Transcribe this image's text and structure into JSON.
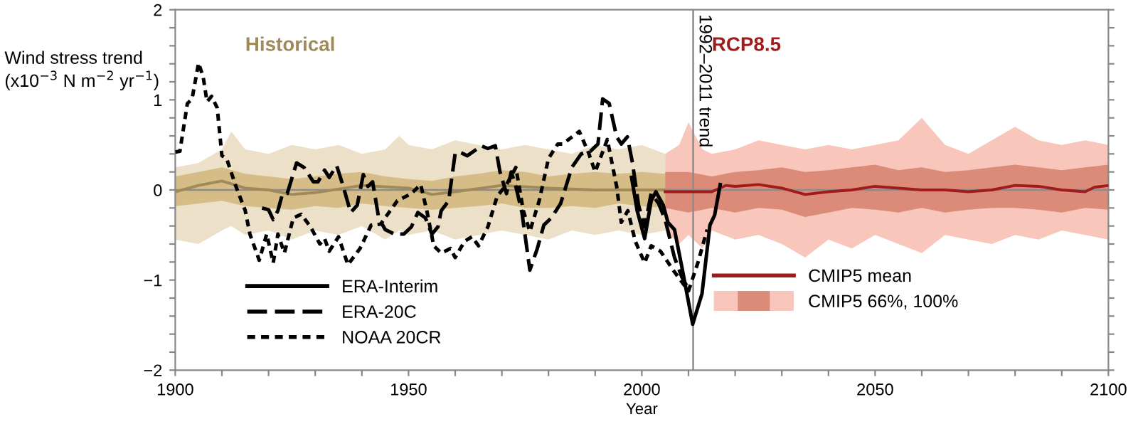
{
  "chart_data": {
    "type": "line",
    "ylabel": "Wind stress trend\n(x10$^{−3}$ N m$^{−2}$ yr$^{−1}$)",
    "xlabel": "Year",
    "xlim": [
      1900,
      2100
    ],
    "xticks": [
      1900,
      {
        "value": 1910,
        "label": null
      },
      {
        "value": 1920,
        "label": null
      },
      {
        "value": 1930,
        "label": null
      },
      {
        "value": 1940,
        "label": null
      },
      1950,
      {
        "value": 1960,
        "label": null
      },
      {
        "value": 1970,
        "label": null
      },
      {
        "value": 1980,
        "label": null
      },
      {
        "value": 1990,
        "label": null
      },
      2000,
      {
        "value": 2010,
        "label": null
      },
      {
        "value": 2020,
        "label": null
      },
      {
        "value": 2030,
        "label": null
      },
      {
        "value": 2040,
        "label": null
      },
      2050,
      {
        "value": 2060,
        "label": null
      },
      {
        "value": 2070,
        "label": null
      },
      {
        "value": 2080,
        "label": null
      },
      {
        "value": 2090,
        "label": null
      },
      2100
    ],
    "ylim": [
      -2,
      2
    ],
    "yticks": [
      -2,
      {
        "value": -1.8,
        "label": null
      },
      {
        "value": -1.6,
        "label": null
      },
      {
        "value": -1.4,
        "label": null
      },
      {
        "value": -1.2,
        "label": null
      },
      -1,
      {
        "value": -0.8,
        "label": null
      },
      {
        "value": -0.6,
        "label": null
      },
      {
        "value": -0.4,
        "label": null
      },
      {
        "value": -0.2,
        "label": null
      },
      0,
      {
        "value": 0.2,
        "label": null
      },
      {
        "value": 0.4,
        "label": null
      },
      {
        "value": 0.6,
        "label": null
      },
      {
        "value": 0.8,
        "label": null
      },
      1,
      {
        "value": 1.2,
        "label": null
      },
      {
        "value": 1.4,
        "label": null
      },
      {
        "value": 1.6,
        "label": null
      },
      {
        "value": 1.8,
        "label": null
      },
      2
    ],
    "grid": false,
    "legend": "bottom",
    "annotations": [
      "Historical",
      "RCP8.5"
    ],
    "ref_lines": [
      {
        "axis": "y",
        "value": 0,
        "color": "#8c8c8c"
      },
      {
        "axis": "x",
        "value": 2011,
        "label": "1992–2011 trend",
        "color": "#8c8c8c"
      }
    ],
    "series": [
      {
        "color": "#ece0c9",
        "x": [
          1900,
          1905,
          1910,
          1912,
          1915,
          1920,
          1925,
          1930,
          1935,
          1940,
          1945,
          1948,
          1950,
          1955,
          1960,
          1965,
          1970,
          1975,
          1980,
          1985,
          1990,
          1995,
          2000,
          2005
        ],
        "values": [
          null,
          null,
          null,
          null,
          null,
          null,
          null,
          null,
          null,
          null,
          null,
          null,
          null,
          null,
          null,
          null,
          null,
          null,
          null,
          null,
          null,
          null,
          null,
          null
        ],
        "lower": [
          -0.55,
          -0.6,
          -0.45,
          -0.4,
          -0.5,
          -0.45,
          -0.55,
          -0.45,
          -0.5,
          -0.4,
          -0.55,
          -0.45,
          -0.5,
          -0.45,
          -0.55,
          -0.5,
          -0.45,
          -0.5,
          -0.55,
          -0.45,
          -0.5,
          -0.45,
          -0.5,
          -0.45
        ],
        "upper": [
          0.25,
          0.3,
          0.45,
          0.65,
          0.45,
          0.4,
          0.5,
          0.45,
          0.5,
          0.4,
          0.45,
          0.6,
          0.5,
          0.45,
          0.55,
          0.5,
          0.45,
          0.5,
          0.45,
          0.4,
          0.5,
          0.45,
          0.5,
          0.4
        ]
      },
      {
        "color": "#d6bc86",
        "x": [
          1900,
          1905,
          1910,
          1915,
          1920,
          1925,
          1930,
          1935,
          1940,
          1945,
          1950,
          1955,
          1960,
          1965,
          1970,
          1975,
          1980,
          1985,
          1990,
          1995,
          2000,
          2005
        ],
        "values": [
          null,
          null,
          null,
          null,
          null,
          null,
          null,
          null,
          null,
          null,
          null,
          null,
          null,
          null,
          null,
          null,
          null,
          null,
          null,
          null,
          null,
          null
        ],
        "lower": [
          -0.18,
          -0.15,
          -0.12,
          -0.18,
          -0.2,
          -0.22,
          -0.18,
          -0.2,
          -0.15,
          -0.18,
          -0.2,
          -0.22,
          -0.2,
          -0.18,
          -0.15,
          -0.2,
          -0.2,
          -0.18,
          -0.2,
          -0.15,
          -0.18,
          -0.2
        ],
        "upper": [
          0.15,
          0.2,
          0.25,
          0.18,
          0.15,
          0.12,
          0.15,
          0.18,
          0.2,
          0.15,
          0.12,
          0.1,
          0.15,
          0.18,
          0.22,
          0.2,
          0.15,
          0.18,
          0.2,
          0.18,
          0.2,
          0.18
        ]
      },
      {
        "name": "CMIP5 66%, 100%",
        "color": "#f8c6ba",
        "x": [
          2005,
          2008,
          2010,
          2013,
          2015,
          2020,
          2025,
          2030,
          2035,
          2040,
          2045,
          2050,
          2055,
          2060,
          2065,
          2070,
          2075,
          2080,
          2085,
          2090,
          2095,
          2100
        ],
        "values": [
          null,
          null,
          null,
          null,
          null,
          null,
          null,
          null,
          null,
          null,
          null,
          null,
          null,
          null,
          null,
          null,
          null,
          null,
          null,
          null,
          null,
          null
        ],
        "lower": [
          -0.45,
          -0.6,
          -0.5,
          -0.65,
          -0.45,
          -0.55,
          -0.5,
          -0.6,
          -0.75,
          -0.55,
          -0.65,
          -0.5,
          -0.6,
          -0.7,
          -0.5,
          -0.55,
          -0.6,
          -0.5,
          -0.55,
          -0.45,
          -0.5,
          -0.55
        ],
        "upper": [
          0.4,
          0.5,
          0.75,
          0.45,
          0.4,
          0.45,
          0.55,
          0.5,
          0.45,
          0.5,
          0.45,
          0.5,
          0.55,
          0.8,
          0.5,
          0.4,
          0.55,
          0.7,
          0.55,
          0.5,
          0.55,
          0.5
        ]
      },
      {
        "color": "#dc8b78",
        "x": [
          2005,
          2010,
          2015,
          2020,
          2025,
          2030,
          2035,
          2040,
          2045,
          2050,
          2055,
          2060,
          2065,
          2070,
          2075,
          2080,
          2085,
          2090,
          2095,
          2100
        ],
        "values": [
          null,
          null,
          null,
          null,
          null,
          null,
          null,
          null,
          null,
          null,
          null,
          null,
          null,
          null,
          null,
          null,
          null,
          null,
          null,
          null
        ],
        "lower": [
          -0.2,
          -0.25,
          -0.2,
          -0.25,
          -0.2,
          -0.22,
          -0.3,
          -0.25,
          -0.2,
          -0.22,
          -0.25,
          -0.2,
          -0.25,
          -0.22,
          -0.2,
          -0.2,
          -0.22,
          -0.25,
          -0.2,
          -0.22
        ],
        "upper": [
          0.2,
          0.2,
          0.15,
          0.2,
          0.22,
          0.25,
          0.2,
          0.22,
          0.25,
          0.28,
          0.22,
          0.25,
          0.2,
          0.22,
          0.25,
          0.28,
          0.25,
          0.22,
          0.25,
          0.28
        ]
      },
      {
        "color": "#a08a5a",
        "x": [
          1900,
          1905,
          1910,
          1915,
          1920,
          1925,
          1930,
          1940,
          1950,
          1955,
          1960,
          1970,
          1980,
          1990,
          2005
        ],
        "values": [
          -0.02,
          0.05,
          0.1,
          0.02,
          0.0,
          -0.05,
          -0.03,
          0.05,
          0.02,
          -0.05,
          -0.02,
          0.05,
          0.02,
          0.0,
          0.0
        ]
      },
      {
        "name": "CMIP5 mean",
        "color": "#a01c1c",
        "x": [
          2005,
          2010,
          2015,
          2018,
          2020,
          2025,
          2030,
          2035,
          2040,
          2045,
          2050,
          2055,
          2060,
          2065,
          2070,
          2075,
          2080,
          2085,
          2090,
          2095,
          2097,
          2100
        ],
        "values": [
          -0.02,
          -0.02,
          -0.02,
          0.05,
          0.04,
          0.06,
          0.02,
          -0.05,
          -0.02,
          0.0,
          0.04,
          0.02,
          0.0,
          0.0,
          -0.02,
          0.0,
          0.05,
          0.04,
          0.0,
          -0.02,
          0.03,
          0.05
        ]
      },
      {
        "name": "ERA-Interim",
        "line_style": "solid",
        "color": "#000000",
        "x": [
          1997.8,
          1999,
          2000.6,
          2002,
          2003,
          2004.6,
          2005.6,
          2007,
          2008.6,
          2010.9,
          2012.9,
          2014.6,
          2015.6,
          2016.8
        ],
        "values": [
          0.14,
          -0.23,
          -0.54,
          -0.12,
          -0.02,
          -0.17,
          -0.36,
          -0.44,
          -0.86,
          -1.49,
          -1.15,
          -0.39,
          -0.28,
          0.06
        ]
      },
      {
        "name": "ERA-20C",
        "line_style": "dashed",
        "color": "#000000",
        "x": [
          1918.6,
          1920,
          1921,
          1922,
          1923,
          1924,
          1926,
          1927.6,
          1929.6,
          1930.6,
          1932,
          1933,
          1934.6,
          1936,
          1937.6,
          1939,
          1940.3,
          1941.3,
          1942.3,
          1943.6,
          1945,
          1947,
          1949,
          1950.6,
          1952,
          1953.6,
          1955,
          1956.3,
          1957,
          1958.6,
          1960,
          1961,
          1962.6,
          1964,
          1965.6,
          1967,
          1968.6,
          1969.6,
          1971,
          1972,
          1973,
          1974.3,
          1976,
          1977.6,
          1979,
          1980.6,
          1982.6,
          1985,
          1987,
          1989,
          1990.6,
          1991.6,
          1993,
          1994.6,
          1995.6,
          1996.9,
          1998,
          1999.3,
          2000.6,
          2002,
          2003.6,
          2005,
          2007,
          2008.6,
          2010
        ],
        "values": [
          -0.2,
          -0.22,
          -0.33,
          -0.23,
          -0.04,
          -0.04,
          0.3,
          0.25,
          0.09,
          0.09,
          0.22,
          0.14,
          0.27,
          0.04,
          -0.25,
          -0.17,
          0.17,
          0.04,
          0.09,
          -0.31,
          -0.44,
          -0.49,
          -0.49,
          -0.41,
          -0.25,
          -0.31,
          -0.49,
          -0.41,
          -0.23,
          -0.12,
          0.41,
          0.42,
          0.38,
          0.43,
          0.49,
          0.46,
          0.49,
          0.2,
          -0.04,
          0.2,
          0.04,
          -0.25,
          -0.89,
          -0.65,
          -0.39,
          -0.31,
          -0.15,
          0.25,
          0.4,
          0.43,
          0.51,
          1.01,
          0.96,
          0.59,
          0.51,
          0.59,
          0.3,
          -0.17,
          -0.41,
          -0.04,
          -0.15,
          -0.33,
          -0.75,
          -0.97,
          -1.1
        ]
      },
      {
        "name": "NOAA 20CR",
        "line_style": "dotted",
        "color": "#000000",
        "x": [
          1900,
          1901,
          1902.6,
          1903.6,
          1905,
          1906,
          1906.8,
          1907.8,
          1909,
          1910,
          1911,
          1913,
          1915,
          1916,
          1918,
          1919.6,
          1921,
          1922,
          1923.4,
          1925.3,
          1927,
          1929,
          1931,
          1932,
          1933,
          1935,
          1937,
          1939.6,
          1942,
          1944,
          1947.6,
          1950.6,
          1952.6,
          1954,
          1955.4,
          1957,
          1959,
          1960,
          1962,
          1963.6,
          1965,
          1967,
          1969,
          1971,
          1973,
          1974.6,
          1976,
          1978,
          1980,
          1982,
          1983,
          1986.6,
          1988.6,
          1990,
          1992.6,
          1994.6,
          1995.6,
          1997,
          1998.6,
          2000.6,
          2002,
          2004,
          2007,
          2010,
          2012,
          2014
        ],
        "values": [
          0.42,
          0.43,
          0.96,
          1.01,
          1.41,
          1.25,
          0.98,
          1.04,
          0.91,
          0.38,
          0.35,
          0.04,
          -0.23,
          -0.49,
          -0.78,
          -0.49,
          -0.81,
          -0.49,
          -0.7,
          -0.31,
          -0.27,
          -0.41,
          -0.6,
          -0.54,
          -0.68,
          -0.52,
          -0.83,
          -0.65,
          -0.39,
          -0.38,
          -0.12,
          -0.04,
          0.06,
          -0.25,
          -0.62,
          -0.7,
          -0.65,
          -0.75,
          -0.57,
          -0.52,
          -0.62,
          -0.41,
          -0.07,
          0.06,
          0.25,
          -0.23,
          -0.46,
          -0.12,
          0.35,
          0.51,
          0.51,
          0.65,
          0.41,
          0.2,
          0.56,
          0.04,
          -0.36,
          -0.23,
          -0.57,
          -0.81,
          -0.62,
          -0.68,
          -0.91,
          -1.12,
          -0.81,
          -0.44
        ]
      }
    ]
  }
}
